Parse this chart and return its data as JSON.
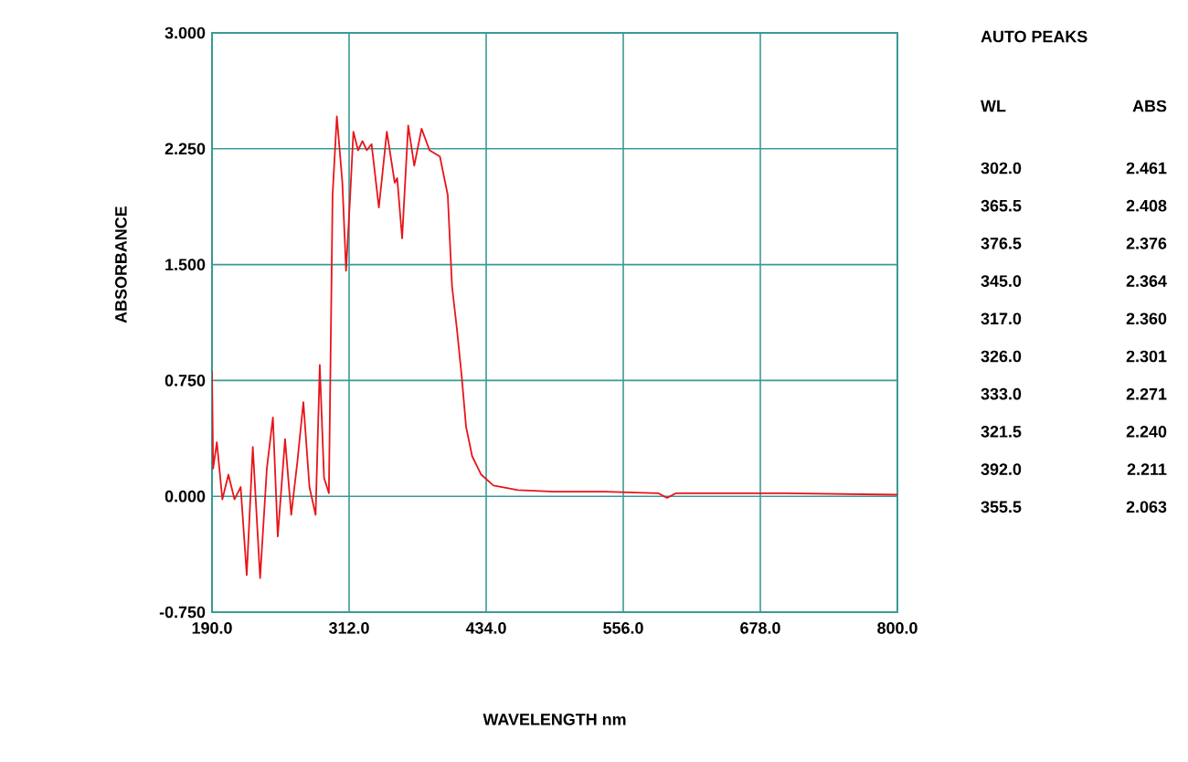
{
  "chart_data": {
    "type": "line",
    "xlabel": "WAVELENGTH  nm",
    "ylabel": "ABSORBANCE",
    "xlim": [
      190,
      800
    ],
    "ylim": [
      -0.75,
      3.0
    ],
    "xticks": [
      {
        "value": 190,
        "label": "190.0"
      },
      {
        "value": 312,
        "label": "312.0"
      },
      {
        "value": 434,
        "label": "434.0"
      },
      {
        "value": 556,
        "label": "556.0"
      },
      {
        "value": 678,
        "label": "678.0"
      },
      {
        "value": 800,
        "label": "800.0"
      }
    ],
    "yticks": [
      {
        "value": -0.75,
        "label": "-0.750"
      },
      {
        "value": 0,
        "label": "0.000"
      },
      {
        "value": 0.75,
        "label": "0.750"
      },
      {
        "value": 1.5,
        "label": "1.500"
      },
      {
        "value": 2.25,
        "label": "2.250"
      },
      {
        "value": 3.0,
        "label": "3.000"
      }
    ],
    "grid": true,
    "marker": "none",
    "line_style": "solid",
    "x": [
      190,
      191,
      194.3,
      199.2,
      204.6,
      210,
      215.5,
      220.9,
      226.3,
      232.8,
      238.8,
      244.2,
      248.5,
      255,
      260.5,
      265.9,
      271.3,
      276.7,
      282.2,
      285.9,
      289.7,
      294,
      297.3,
      301.1,
      306,
      309.3,
      313,
      315.8,
      320,
      323.9,
      327.7,
      332,
      338.5,
      345.6,
      352.6,
      354.8,
      359.2,
      364.6,
      370,
      376.5,
      383.6,
      392.8,
      399.8,
      403.6,
      408,
      412.3,
      416.1,
      421.5,
      429.6,
      440.5,
      462.2,
      494.7,
      540,
      587,
      595,
      603,
      700,
      800
    ],
    "series": [
      {
        "color": "#e8141a",
        "values": [
          0.81,
          0.18,
          0.35,
          -0.02,
          0.14,
          -0.02,
          0.06,
          -0.51,
          0.32,
          -0.53,
          0.18,
          0.51,
          -0.26,
          0.37,
          -0.12,
          0.22,
          0.61,
          0.06,
          -0.12,
          0.85,
          0.12,
          0.02,
          1.95,
          2.46,
          2.03,
          1.46,
          1.95,
          2.36,
          2.24,
          2.3,
          2.24,
          2.28,
          1.87,
          2.36,
          2.03,
          2.06,
          1.67,
          2.4,
          2.14,
          2.38,
          2.24,
          2.2,
          1.95,
          1.36,
          1.08,
          0.77,
          0.45,
          0.26,
          0.14,
          0.07,
          0.04,
          0.03,
          0.03,
          0.02,
          -0.01,
          0.02,
          0.02,
          0.01
        ]
      }
    ],
    "annotations": [
      "AUTO  PEAKS",
      "WL",
      "ABS",
      "302.0",
      "2.461",
      "365.5",
      "2.408",
      "376.5",
      "2.376",
      "345.0",
      "2.364",
      "317.0",
      "2.360",
      "326.0",
      "2.301",
      "333.0",
      "2.271",
      "321.5",
      "2.240",
      "392.0",
      "2.211",
      "355.5",
      "2.063"
    ]
  }
}
